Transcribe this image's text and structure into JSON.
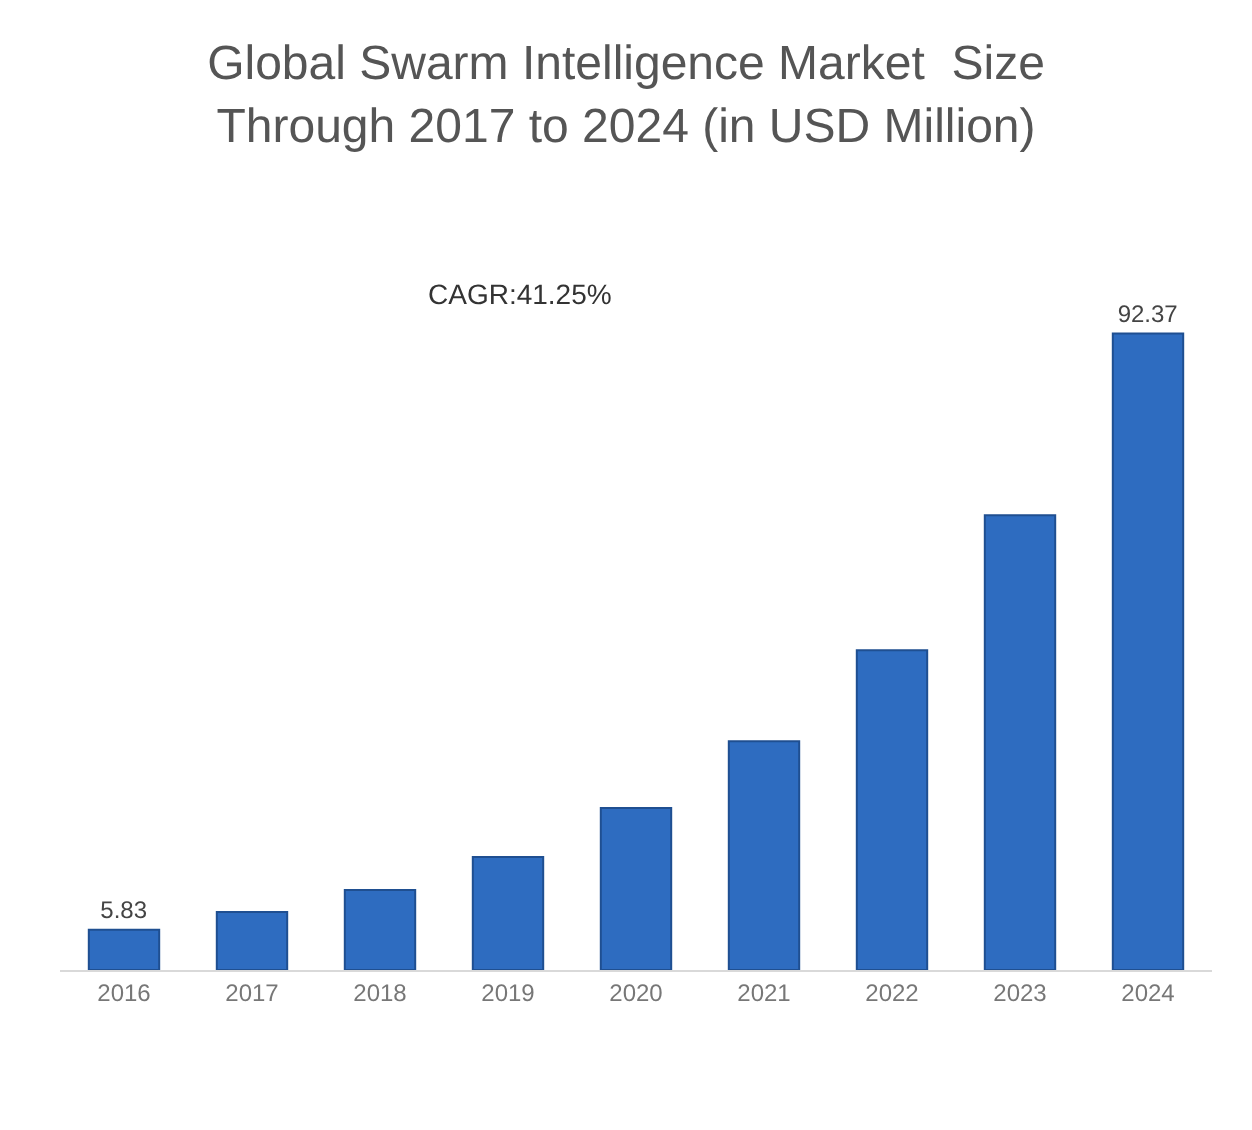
{
  "chart_data": {
    "type": "bar",
    "title": "Global Swarm Intelligence Market  Size\nThrough 2017 to 2024 (in USD Million)",
    "annotations": [
      "CAGR:41.25%"
    ],
    "categories": [
      "2016",
      "2017",
      "2018",
      "2019",
      "2020",
      "2021",
      "2022",
      "2023",
      "2024"
    ],
    "values": [
      5.83,
      8.4,
      11.6,
      16.4,
      23.5,
      33.2,
      46.4,
      66,
      92.37
    ],
    "value_labels": [
      "5.83",
      null,
      null,
      null,
      null,
      null,
      null,
      null,
      "92.37"
    ],
    "color": "#2e6cc0",
    "tick_labels": "x",
    "legend": false
  }
}
